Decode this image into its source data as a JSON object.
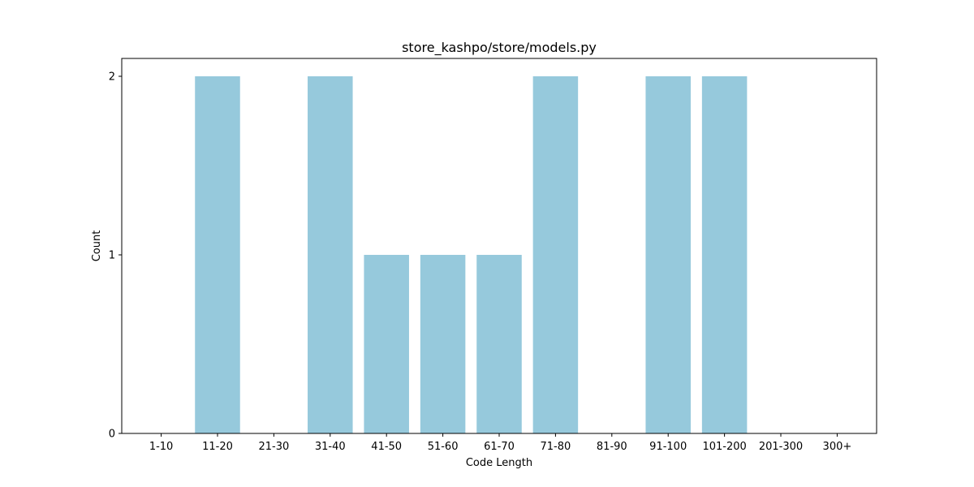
{
  "chart_data": {
    "type": "bar",
    "title": "store_kashpo/store/models.py",
    "xlabel": "Code Length",
    "ylabel": "Count",
    "categories": [
      "1-10",
      "11-20",
      "21-30",
      "31-40",
      "41-50",
      "51-60",
      "61-70",
      "71-80",
      "81-90",
      "91-100",
      "101-200",
      "201-300",
      "300+"
    ],
    "values": [
      0,
      2,
      0,
      2,
      1,
      1,
      1,
      2,
      0,
      2,
      2,
      0,
      0
    ],
    "yticks": [
      "0",
      "1",
      "2"
    ],
    "ylim": [
      0,
      2.1
    ],
    "grid": false,
    "bar_color": "#96c9dc"
  }
}
